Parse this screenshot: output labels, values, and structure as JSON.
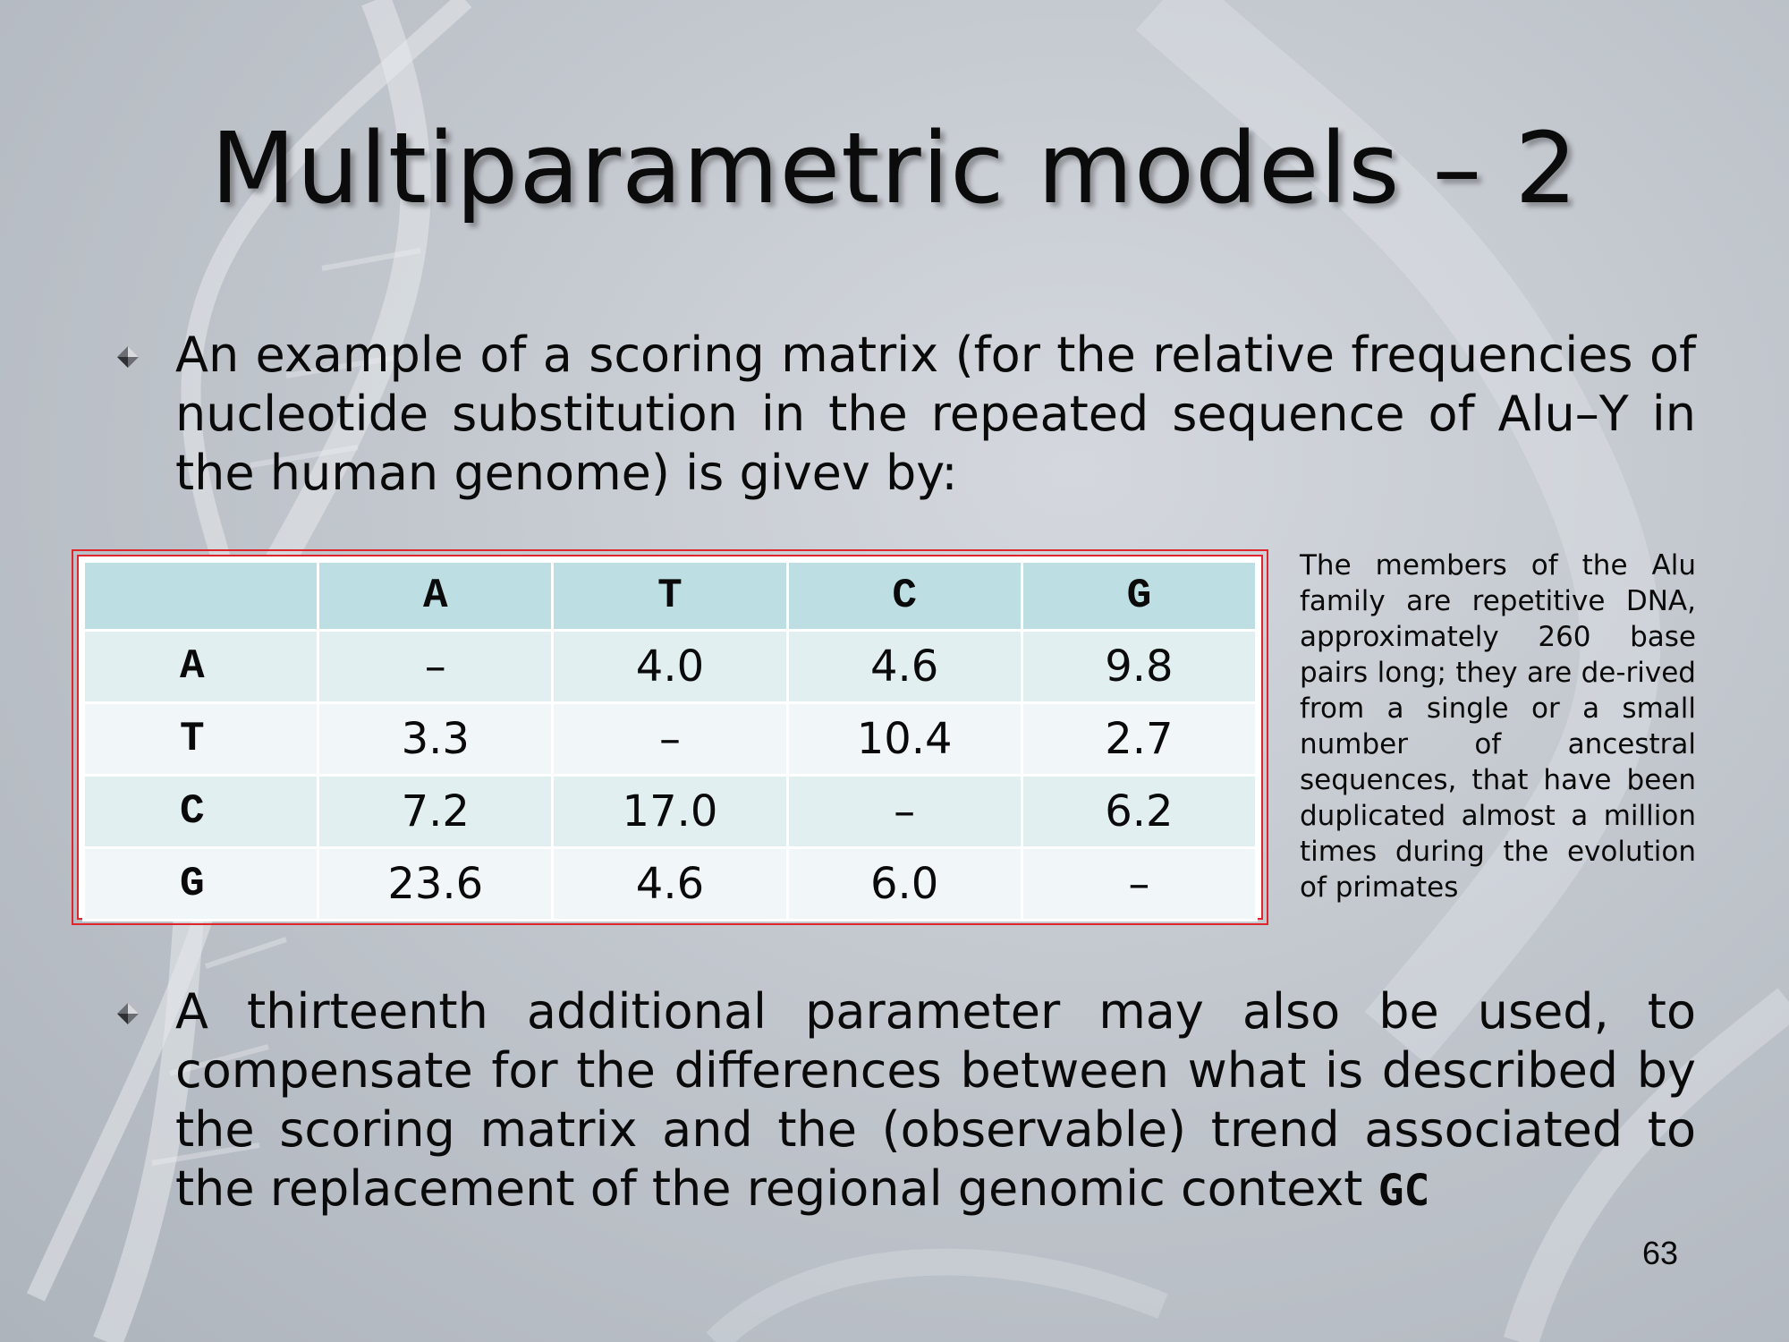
{
  "slide": {
    "title": "Multiparametric models – 2",
    "bullets": [
      "An example of a scoring matrix (for the relative frequencies of nucleotide substitution in the repeated sequence of Alu–Y in the human genome) is givev by:",
      "A thirteenth additional parameter may also be used, to compensate for the differences between what is described by the scoring matrix and the (observable) trend associated to the replacement of the regional genomic context"
    ],
    "bullet2_tail": "GC",
    "side_note": "The members of the Alu family are repetitive DNA, approximately 260 base pairs long; they are de-rived from a single or a small number of ancestral sequences, that have been duplicated almost a million times during the evolution of primates",
    "page_number": "63"
  },
  "matrix": {
    "corner": "",
    "columns": [
      "A",
      "T",
      "C",
      "G"
    ],
    "rows": [
      {
        "label": "A",
        "cells": [
          "–",
          "4.0",
          "4.6",
          "9.8"
        ]
      },
      {
        "label": "T",
        "cells": [
          "3.3",
          "–",
          "10.4",
          "2.7"
        ]
      },
      {
        "label": "C",
        "cells": [
          "7.2",
          "17.0",
          "–",
          "6.2"
        ]
      },
      {
        "label": "G",
        "cells": [
          "23.6",
          "4.6",
          "6.0",
          "–"
        ]
      }
    ]
  },
  "colors": {
    "frame": "#e0262d",
    "header_fill": "#bddfe3",
    "row_fill_odd": "#e2eff1",
    "row_fill_even": "#f1f7f8"
  }
}
